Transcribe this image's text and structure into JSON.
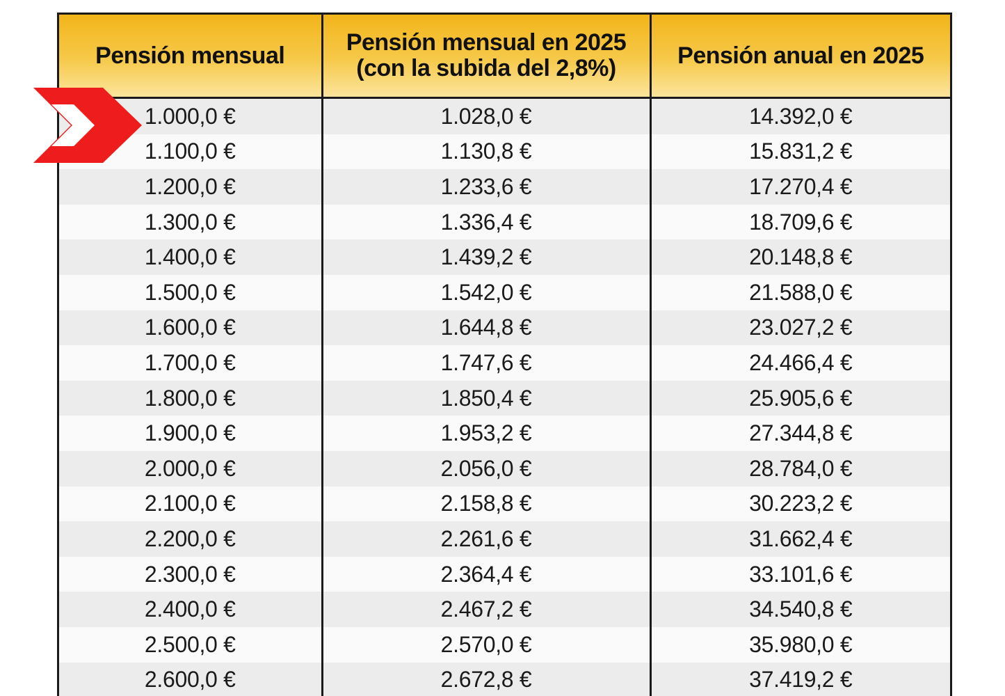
{
  "table": {
    "headers": [
      {
        "line1": "Pensión mensual",
        "line2": ""
      },
      {
        "line1": "Pensión mensual en 2025",
        "line2": "(con la subida del 2,8%)"
      },
      {
        "line1": "Pensión anual en 2025",
        "line2": ""
      }
    ],
    "rows": [
      [
        "1.000,0 €",
        "1.028,0 €",
        "14.392,0 €"
      ],
      [
        "1.100,0 €",
        "1.130,8 €",
        "15.831,2 €"
      ],
      [
        "1.200,0 €",
        "1.233,6 €",
        "17.270,4 €"
      ],
      [
        "1.300,0 €",
        "1.336,4 €",
        "18.709,6 €"
      ],
      [
        "1.400,0 €",
        "1.439,2 €",
        "20.148,8 €"
      ],
      [
        "1.500,0 €",
        "1.542,0 €",
        "21.588,0 €"
      ],
      [
        "1.600,0 €",
        "1.644,8 €",
        "23.027,2 €"
      ],
      [
        "1.700,0 €",
        "1.747,6 €",
        "24.466,4 €"
      ],
      [
        "1.800,0 €",
        "1.850,4 €",
        "25.905,6 €"
      ],
      [
        "1.900,0 €",
        "1.953,2 €",
        "27.344,8 €"
      ],
      [
        "2.000,0 €",
        "2.056,0 €",
        "28.784,0 €"
      ],
      [
        "2.100,0 €",
        "2.158,8 €",
        "30.223,2 €"
      ],
      [
        "2.200,0 €",
        "2.261,6 €",
        "31.662,4 €"
      ],
      [
        "2.300,0 €",
        "2.364,4 €",
        "33.101,6 €"
      ],
      [
        "2.400,0 €",
        "2.467,2 €",
        "34.540,8 €"
      ],
      [
        "2.500,0 €",
        "2.570,0 €",
        "35.980,0 €"
      ],
      [
        "2.600,0 €",
        "2.672,8 €",
        "37.419,2 €"
      ]
    ]
  },
  "colors": {
    "header_gold": "#f2b51a",
    "arrow_red": "#ee1c1c",
    "row_shade": "#ececec"
  },
  "icons": {
    "pointer": "double-chevron-right-icon"
  }
}
